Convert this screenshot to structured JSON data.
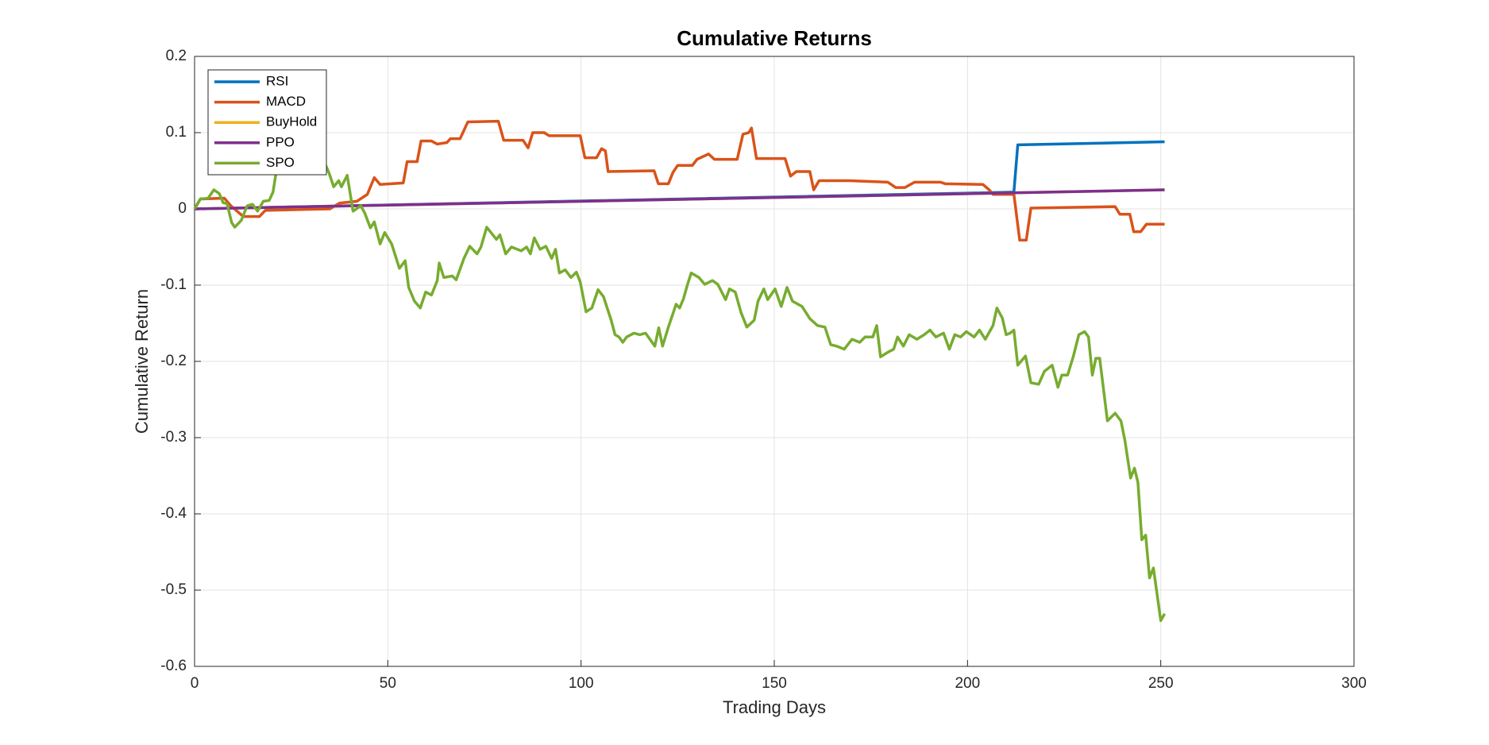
{
  "chart_data": {
    "type": "line",
    "title": "Cumulative Returns",
    "x_label": "Trading Days",
    "y_label": "Cumulative Return",
    "xlim": [
      0,
      300
    ],
    "xticks": [
      0,
      50,
      100,
      150,
      200,
      250,
      300
    ],
    "ylim": [
      -0.6,
      0.2
    ],
    "yticks": [
      -0.6,
      -0.5,
      -0.4,
      -0.3,
      -0.2,
      -0.1,
      0,
      0.1,
      0.2
    ],
    "grid": true,
    "legend": "upper-left",
    "series": [
      {
        "name": "RSI",
        "color": "#0072BD",
        "x": [
          0,
          203,
          212,
          213,
          251
        ],
        "values": [
          0,
          0.021,
          0.022,
          0.084,
          0.088
        ]
      },
      {
        "name": "MACD",
        "color": "#D95319",
        "x": [
          0,
          1.5,
          7.7,
          9.4,
          12.6,
          16.8,
          18.3,
          35,
          37.5,
          42,
          44.7,
          46.5,
          48,
          54,
          55,
          57.6,
          58.6,
          61.3,
          62.8,
          65.3,
          66.2,
          68.7,
          70.7,
          78.6,
          80,
          85,
          86.3,
          87.5,
          90.5,
          91.7,
          99.8,
          101,
          104,
          105.3,
          106.3,
          107,
          118.9,
          120,
          122.6,
          123.8,
          125,
          128.8,
          130,
          133,
          134.5,
          140.4,
          141.9,
          143.4,
          144.1,
          145.4,
          152.8,
          154.2,
          155.7,
          159.2,
          160.2,
          161.6,
          169.5,
          179.4,
          181.4,
          183.8,
          186.3,
          193,
          194.2,
          204,
          205.6,
          206.6,
          212,
          213.5,
          215.2,
          216.4,
          238.2,
          239.4,
          242,
          243,
          244.8,
          246.3,
          251
        ],
        "values": [
          0,
          0.013,
          0.014,
          0.004,
          -0.01,
          -0.01,
          -0.002,
          0,
          0.0075,
          0.01,
          0.019,
          0.041,
          0.032,
          0.034,
          0.062,
          0.062,
          0.089,
          0.089,
          0.085,
          0.087,
          0.092,
          0.092,
          0.114,
          0.115,
          0.09,
          0.09,
          0.08,
          0.1,
          0.1,
          0.096,
          0.096,
          0.067,
          0.067,
          0.079,
          0.076,
          0.049,
          0.05,
          0.033,
          0.033,
          0.048,
          0.057,
          0.057,
          0.065,
          0.072,
          0.065,
          0.065,
          0.098,
          0.1,
          0.106,
          0.066,
          0.066,
          0.043,
          0.049,
          0.049,
          0.025,
          0.037,
          0.037,
          0.035,
          0.028,
          0.028,
          0.035,
          0.035,
          0.033,
          0.032,
          0.025,
          0.019,
          0.019,
          -0.041,
          -0.041,
          0.001,
          0.003,
          -0.007,
          -0.007,
          -0.03,
          -0.03,
          -0.02,
          -0.02
        ]
      },
      {
        "name": "BuyHold",
        "color": "#EDB120",
        "x": [
          0,
          251
        ],
        "values": [
          0,
          0.025
        ]
      },
      {
        "name": "PPO",
        "color": "#7E2F8E",
        "x": [
          0,
          251
        ],
        "values": [
          0,
          0.025
        ]
      },
      {
        "name": "SPO",
        "color": "#77AC30",
        "x": [
          0,
          1.5,
          3.5,
          5,
          6.4,
          7.4,
          8.4,
          9.6,
          10.4,
          12.1,
          13.6,
          15,
          16.3,
          17.8,
          19.3,
          20.3,
          21.3,
          23.7,
          28.7,
          33.7,
          34.8,
          36,
          37.3,
          38,
          39.5,
          41,
          43,
          44,
          45.5,
          46.5,
          48,
          49.2,
          51,
          53,
          54.5,
          55.4,
          56.9,
          58.4,
          59.8,
          61.3,
          62.8,
          63.3,
          64.5,
          66.7,
          67.7,
          69.7,
          71.2,
          73.1,
          74.1,
          75.6,
          78.1,
          79,
          80.5,
          82,
          84.5,
          85.9,
          86.9,
          87.9,
          89.4,
          90.9,
          92.4,
          93.4,
          94.4,
          95.9,
          97.4,
          98.8,
          99.8,
          101.3,
          102.8,
          104.4,
          105.8,
          107.8,
          108.8,
          109.8,
          110.8,
          111.8,
          113.7,
          115.2,
          116.7,
          119.1,
          120.1,
          121.1,
          122.6,
          124.6,
          125.5,
          126.5,
          127.5,
          128.5,
          130.5,
          132,
          134,
          135.4,
          137.4,
          138.4,
          139.9,
          141.4,
          142.9,
          144.8,
          145.8,
          147.3,
          148.3,
          150.2,
          151.8,
          153.3,
          154.7,
          157.2,
          159.2,
          161.2,
          163.1,
          164.6,
          166.1,
          168.1,
          170.1,
          172.1,
          173.5,
          175.5,
          176.5,
          177.5,
          179.4,
          180.9,
          181.9,
          183.4,
          184.9,
          186.9,
          188.8,
          190.3,
          191.8,
          193.8,
          195.3,
          196.7,
          198.2,
          199.7,
          201.7,
          203.1,
          204.6,
          206.6,
          207.6,
          209,
          210,
          211,
          212,
          213,
          215,
          216.4,
          218.4,
          219.9,
          221.9,
          223.4,
          224.4,
          225.9,
          227.4,
          228.8,
          230.3,
          231.3,
          232.3,
          233.2,
          234.2,
          236.2,
          238.2,
          239.7,
          240.7,
          242.2,
          243.2,
          244.1,
          245.1,
          246.1,
          247.1,
          248.1,
          250,
          251
        ],
        "values": [
          0,
          0.013,
          0.014,
          0.025,
          0.02,
          0.008,
          0.007,
          -0.018,
          -0.024,
          -0.015,
          0.004,
          0.006,
          -0.003,
          0.01,
          0.011,
          0.022,
          0.054,
          0.07,
          0.07,
          0.06,
          0.047,
          0.029,
          0.037,
          0.029,
          0.044,
          -0.003,
          0.004,
          -0.005,
          -0.025,
          -0.017,
          -0.046,
          -0.031,
          -0.046,
          -0.078,
          -0.068,
          -0.103,
          -0.121,
          -0.13,
          -0.109,
          -0.113,
          -0.094,
          -0.071,
          -0.09,
          -0.088,
          -0.093,
          -0.065,
          -0.049,
          -0.059,
          -0.05,
          -0.024,
          -0.04,
          -0.034,
          -0.059,
          -0.05,
          -0.055,
          -0.05,
          -0.059,
          -0.038,
          -0.053,
          -0.049,
          -0.065,
          -0.053,
          -0.084,
          -0.08,
          -0.09,
          -0.083,
          -0.096,
          -0.135,
          -0.13,
          -0.106,
          -0.115,
          -0.146,
          -0.165,
          -0.168,
          -0.175,
          -0.168,
          -0.163,
          -0.165,
          -0.163,
          -0.18,
          -0.156,
          -0.18,
          -0.155,
          -0.125,
          -0.13,
          -0.118,
          -0.1,
          -0.084,
          -0.09,
          -0.099,
          -0.094,
          -0.099,
          -0.119,
          -0.105,
          -0.109,
          -0.136,
          -0.155,
          -0.146,
          -0.121,
          -0.105,
          -0.119,
          -0.105,
          -0.128,
          -0.103,
          -0.121,
          -0.128,
          -0.144,
          -0.153,
          -0.155,
          -0.178,
          -0.18,
          -0.184,
          -0.171,
          -0.175,
          -0.168,
          -0.168,
          -0.153,
          -0.194,
          -0.188,
          -0.184,
          -0.168,
          -0.18,
          -0.165,
          -0.171,
          -0.165,
          -0.159,
          -0.168,
          -0.163,
          -0.184,
          -0.165,
          -0.168,
          -0.161,
          -0.168,
          -0.159,
          -0.171,
          -0.153,
          -0.13,
          -0.143,
          -0.165,
          -0.163,
          -0.159,
          -0.205,
          -0.193,
          -0.228,
          -0.23,
          -0.213,
          -0.205,
          -0.234,
          -0.218,
          -0.218,
          -0.193,
          -0.165,
          -0.161,
          -0.168,
          -0.218,
          -0.196,
          -0.196,
          -0.278,
          -0.268,
          -0.278,
          -0.303,
          -0.353,
          -0.34,
          -0.359,
          -0.434,
          -0.428,
          -0.484,
          -0.471,
          -0.54,
          -0.531
        ]
      }
    ]
  }
}
